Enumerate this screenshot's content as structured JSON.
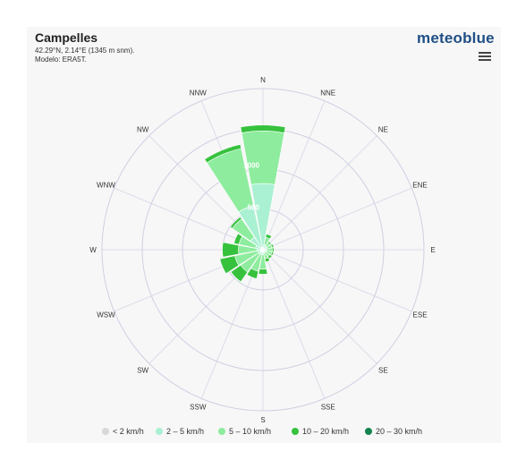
{
  "header": {
    "title": "Campelles",
    "coords": "42.29°N, 2.14°E (1345 m snm).",
    "model": "Modelo: ERA5T.",
    "brand": "meteoblue"
  },
  "chart_data": {
    "type": "windrose",
    "directions": [
      "N",
      "NNE",
      "NE",
      "ENE",
      "E",
      "ESE",
      "SE",
      "SSE",
      "S",
      "SSW",
      "SW",
      "WSW",
      "W",
      "WNW",
      "NW",
      "NNW"
    ],
    "rlim": [
      0,
      1900
    ],
    "rticks": [
      500,
      1000,
      1500
    ],
    "series": [
      {
        "name": "< 2 km/h",
        "color": "#d8d8d8",
        "values": [
          0,
          0,
          0,
          0,
          0,
          0,
          0,
          0,
          0,
          0,
          0,
          0,
          0,
          0,
          0,
          0
        ]
      },
      {
        "name": "2 – 5 km/h",
        "color": "#aaf0d2",
        "values": [
          780,
          60,
          50,
          50,
          40,
          40,
          40,
          40,
          60,
          60,
          60,
          60,
          70,
          90,
          180,
          530
        ]
      },
      {
        "name": "5 – 10 km/h",
        "color": "#8eec9e",
        "values": [
          620,
          90,
          50,
          60,
          70,
          70,
          60,
          70,
          170,
          200,
          260,
          280,
          220,
          200,
          260,
          690
        ]
      },
      {
        "name": "10 – 20 km/h",
        "color": "#37c23e",
        "values": [
          70,
          40,
          20,
          20,
          20,
          20,
          30,
          40,
          60,
          90,
          140,
          180,
          190,
          60,
          30,
          50
        ]
      },
      {
        "name": "20 – 30 km/h",
        "color": "#15844e",
        "values": [
          0,
          0,
          0,
          0,
          0,
          0,
          0,
          0,
          0,
          0,
          0,
          0,
          0,
          0,
          0,
          0
        ]
      }
    ]
  }
}
